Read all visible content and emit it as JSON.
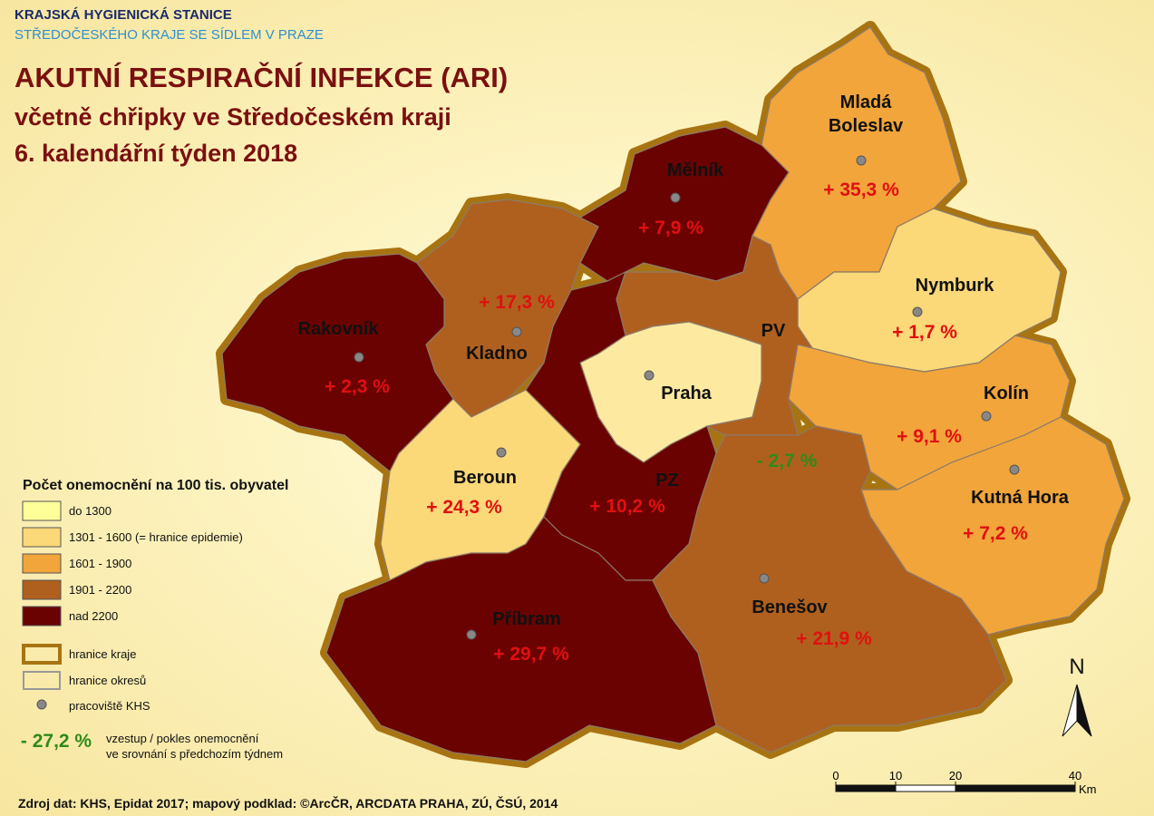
{
  "header": {
    "org": "KRAJSKÁ HYGIENICKÁ STANICE",
    "org_sub": "STŘEDOČESKÉHO KRAJE SE SÍDLEM V PRAZE",
    "title": [
      "AKUTNÍ RESPIRAČNÍ INFEKCE (ARI)",
      "včetně chřipky ve Středočeském kraji",
      "6. kalendářní týden 2018"
    ]
  },
  "districts": [
    {
      "name": "Mladá Boleslav",
      "change": "+ 35,3 %",
      "color": "#f1a53a",
      "change_color": "#e01010"
    },
    {
      "name": "Mělník",
      "change": "+ 7,9 %",
      "color": "#6b0202",
      "change_color": "#e01010"
    },
    {
      "name": "Kladno",
      "change": "+ 17,3 %",
      "color": "#b0601e",
      "change_color": "#e01010"
    },
    {
      "name": "Rakovník",
      "change": "+ 2,3 %",
      "color": "#6b0202",
      "change_color": "#e01010"
    },
    {
      "name": "Nymburk",
      "change": "+ 1,7 %",
      "color": "#fbd878",
      "change_color": "#e01010"
    },
    {
      "name": "PV",
      "change": "- 2,7 %",
      "color": "#b0601e",
      "change_color": "#2f8a1a"
    },
    {
      "name": "Praha",
      "change": null,
      "color": "#fdeaa0",
      "change_color": null
    },
    {
      "name": "Kolín",
      "change": "+ 9,1 %",
      "color": "#f1a53a",
      "change_color": "#e01010"
    },
    {
      "name": "Beroun",
      "change": "+ 24,3 %",
      "color": "#fbd878",
      "change_color": "#e01010"
    },
    {
      "name": "PZ",
      "change": "+ 10,2 %",
      "color": "#6b0202",
      "change_color": "#e01010"
    },
    {
      "name": "Kutná Hora",
      "change": "+ 7,2 %",
      "color": "#f1a53a",
      "change_color": "#e01010"
    },
    {
      "name": "Příbram",
      "change": "+ 29,7 %",
      "color": "#6b0202",
      "change_color": "#e01010"
    },
    {
      "name": "Benešov",
      "change": "+ 21,9 %",
      "color": "#b0601e",
      "change_color": "#e01010"
    }
  ],
  "legend": {
    "title": "Počet onemocnění na 100 tis. obyvatel",
    "classes": [
      {
        "label": "do 1300",
        "color": "#ffff99"
      },
      {
        "label": "1301 - 1600 (= hranice epidemie)",
        "color": "#fbd878"
      },
      {
        "label": "1601 - 1900",
        "color": "#f1a53a"
      },
      {
        "label": "1901 - 2200",
        "color": "#b0601e"
      },
      {
        "label": "nad 2200",
        "color": "#6b0202"
      }
    ],
    "region_border": "hranice kraje",
    "district_border": "hranice okresů",
    "office": "pracoviště KHS",
    "example": "- 27,2 %",
    "example_text": [
      "vzestup / pokles onemocnění",
      "ve srovnání s předchozím týdnem"
    ]
  },
  "scale": {
    "ticks": [
      0,
      10,
      20,
      40
    ],
    "unit": "Km"
  },
  "north": "N",
  "source": "Zdroj dat: KHS, Epidat 2017; mapový podklad: ©ArcČR, ARCDATA PRAHA, ZÚ, ČSÚ, 2014"
}
